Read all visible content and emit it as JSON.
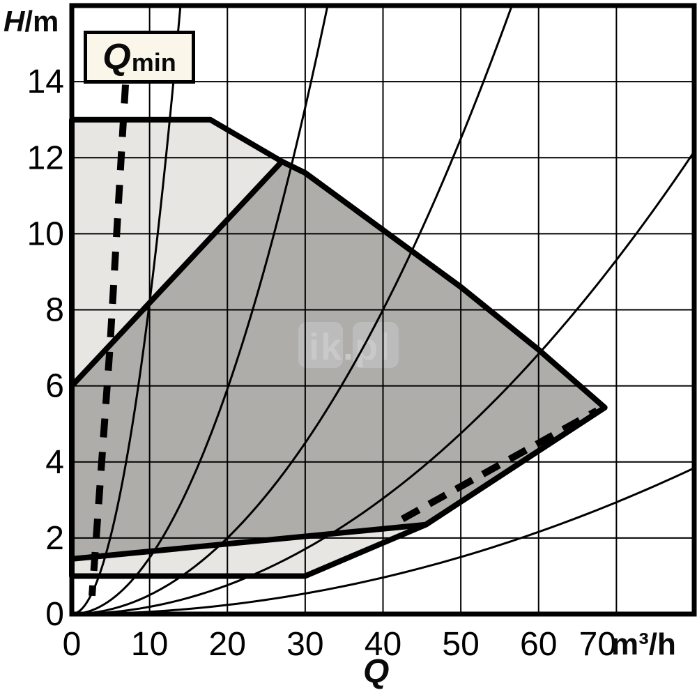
{
  "labels": {
    "y_axis_symbol": "H",
    "y_axis_unit": "/m",
    "x_axis_symbol": "Q",
    "x_axis_unit": "m³/h",
    "qmin_symbol": "Q",
    "qmin_subscript": "min"
  },
  "watermark": {
    "text": "ik.pl"
  },
  "colors": {
    "background": "#ffffff",
    "ink": "#000000",
    "grid": "#000000",
    "light_region": "#e8e6e3",
    "dark_region": "#aeadaa",
    "qmin_box_fill": "#faf6ea",
    "watermark_tile": "#bcbcbc",
    "watermark_text": "#c9c9c9"
  },
  "chart_data": {
    "type": "area",
    "title": "",
    "description": "Pump duty chart: head H (m) versus flow Q (m³/h) with shaded operating envelopes, dashed Qmin limit line and thin system resistance curves",
    "x": {
      "label": "Q",
      "unit": "m³/h",
      "min": 0,
      "max": 80,
      "grid_step": 10,
      "ticks": [
        0,
        10,
        20,
        30,
        40,
        50,
        60,
        70
      ]
    },
    "y": {
      "label": "H/m",
      "min": 0,
      "max": 16,
      "grid_step": 2,
      "ticks": [
        0,
        2,
        4,
        6,
        8,
        10,
        12,
        14
      ]
    },
    "grid": true,
    "legend_position": "none",
    "regions": [
      {
        "name": "outer-envelope",
        "fill_key": "light_region",
        "points_qh": [
          [
            0,
            13
          ],
          [
            17.8,
            13
          ],
          [
            27,
            11.9
          ],
          [
            30,
            11.6
          ],
          [
            40,
            10.1
          ],
          [
            50,
            8.6
          ],
          [
            60,
            6.95
          ],
          [
            68.5,
            5.43
          ],
          [
            45.5,
            2.35
          ],
          [
            30,
            1.0
          ],
          [
            0,
            1.0
          ]
        ]
      },
      {
        "name": "inner-control-range",
        "fill_key": "dark_region",
        "points_qh": [
          [
            0,
            6
          ],
          [
            27,
            11.9
          ],
          [
            30,
            11.6
          ],
          [
            40,
            10.1
          ],
          [
            50,
            8.6
          ],
          [
            60,
            6.95
          ],
          [
            68.5,
            5.43
          ],
          [
            45.5,
            2.35
          ],
          [
            0,
            1.45
          ]
        ]
      }
    ],
    "qmin_line": {
      "label": "Qmin",
      "style": "dashed",
      "points_qh": [
        [
          6.9,
          13.92
        ],
        [
          4.9,
          7.0
        ],
        [
          2.6,
          0.48
        ]
      ]
    },
    "aux_dashed_line": {
      "style": "dashed",
      "points_qh": [
        [
          42.5,
          2.5
        ],
        [
          67.5,
          5.35
        ]
      ]
    },
    "system_curves": {
      "model": "H = k * Q^2",
      "k_values": [
        0.082,
        0.0148,
        0.005,
        0.0019,
        0.0006
      ]
    }
  }
}
